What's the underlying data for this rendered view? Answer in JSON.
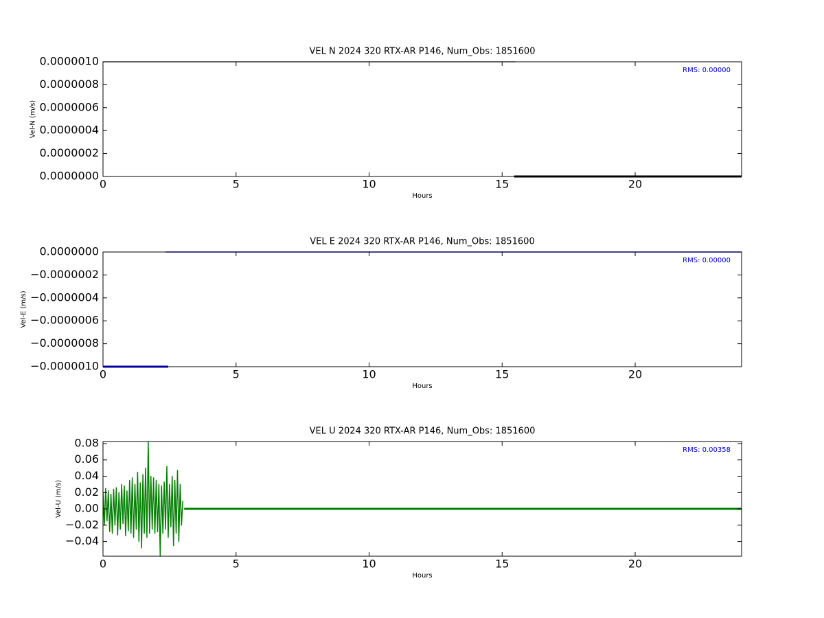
{
  "chart_data": [
    {
      "type": "line",
      "title": "VEL N 2024 320 RTX-AR  P146, Num_Obs: 1851600",
      "xlabel": "Hours",
      "ylabel": "Vel-N (m/s)",
      "annotation": "RMS:  0.00000",
      "xlim": [
        0,
        24
      ],
      "xticks": [
        0,
        5,
        10,
        15,
        20
      ],
      "ylim": [
        0,
        1e-06
      ],
      "yticks": [
        {
          "value": 0,
          "label": "0.0000000"
        },
        {
          "value": 2e-07,
          "label": "0.0000002"
        },
        {
          "value": 4e-07,
          "label": "0.0000004"
        },
        {
          "value": 6e-07,
          "label": "0.0000006"
        },
        {
          "value": 8e-07,
          "label": "0.0000008"
        },
        {
          "value": 1e-06,
          "label": "0.0000010"
        }
      ],
      "series": [
        {
          "color": "#000000",
          "linewidth": 1.2,
          "x": [
            0,
            15.5
          ],
          "values": [
            1e-06,
            1e-06
          ]
        },
        {
          "color": "#000000",
          "linewidth": 3,
          "x": [
            15.45,
            24
          ],
          "values": [
            0,
            0
          ]
        }
      ]
    },
    {
      "type": "line",
      "title": "VEL E 2024 320 RTX-AR  P146, Num_Obs: 1851600",
      "xlabel": "Hours",
      "ylabel": "Vel-E (m/s)",
      "annotation": "RMS:  0.00000",
      "xlim": [
        0,
        24
      ],
      "xticks": [
        0,
        5,
        10,
        15,
        20
      ],
      "ylim": [
        -1e-06,
        0
      ],
      "yticks": [
        {
          "value": -1e-06,
          "label": "−0.0000010"
        },
        {
          "value": -8e-07,
          "label": "−0.0000008"
        },
        {
          "value": -6e-07,
          "label": "−0.0000006"
        },
        {
          "value": -4e-07,
          "label": "−0.0000004"
        },
        {
          "value": -2e-07,
          "label": "−0.0000002"
        },
        {
          "value": 0,
          "label": "0.0000000"
        }
      ],
      "series": [
        {
          "color": "#000000",
          "linewidth": 1,
          "x": [
            0,
            2.35
          ],
          "values": [
            0,
            0
          ]
        },
        {
          "color": "#0000ff",
          "linewidth": 1.5,
          "x": [
            2.35,
            24
          ],
          "values": [
            0,
            0
          ]
        },
        {
          "color": "#0000ff",
          "linewidth": 3,
          "x": [
            0,
            2.45
          ],
          "values": [
            -1e-06,
            -1e-06
          ]
        }
      ]
    },
    {
      "type": "line",
      "title": "VEL U 2024 320 RTX-AR  P146, Num_Obs: 1851600",
      "xlabel": "Hours",
      "ylabel": "Vel-U (m/s)",
      "annotation": "RMS:  0.00358",
      "xlim": [
        0,
        24
      ],
      "xticks": [
        0,
        5,
        10,
        15,
        20
      ],
      "ylim": [
        -0.058,
        0.0825
      ],
      "yticks": [
        {
          "value": -0.04,
          "label": "−0.04"
        },
        {
          "value": -0.02,
          "label": "−0.02"
        },
        {
          "value": 0,
          "label": "0.00"
        },
        0.02,
        0.04,
        0.06,
        0.08
      ],
      "series": [
        {
          "color": "#008000",
          "linewidth": 1.5,
          "x": [
            0,
            0.05,
            0.1,
            0.15,
            0.2,
            0.25,
            0.3,
            0.35,
            0.4,
            0.45,
            0.5,
            0.55,
            0.6,
            0.65,
            0.7,
            0.75,
            0.8,
            0.85,
            0.9,
            0.95,
            1,
            1.05,
            1.1,
            1.15,
            1.2,
            1.25,
            1.3,
            1.35,
            1.4,
            1.45,
            1.5,
            1.55,
            1.6,
            1.65,
            1.7,
            1.75,
            1.8,
            1.85,
            1.9,
            1.95,
            2,
            2.05,
            2.1,
            2.15,
            2.2,
            2.25,
            2.3,
            2.35,
            2.4,
            2.45,
            2.5,
            2.55,
            2.6,
            2.65,
            2.7,
            2.75,
            2.8,
            2.85,
            2.9,
            2.95,
            3
          ],
          "values": [
            0.02,
            -0.02,
            0.025,
            -0.015,
            0.022,
            -0.028,
            0.018,
            -0.03,
            0.024,
            -0.02,
            0.026,
            -0.032,
            0.02,
            -0.025,
            0.03,
            -0.018,
            0.028,
            -0.033,
            0.022,
            -0.027,
            0.035,
            -0.03,
            0.038,
            -0.035,
            0.03,
            -0.025,
            0.045,
            -0.04,
            0.032,
            -0.048,
            0.042,
            -0.03,
            0.05,
            -0.035,
            0.082,
            -0.03,
            0.04,
            -0.025,
            0.038,
            -0.03,
            0.035,
            -0.028,
            0.03,
            -0.058,
            0.028,
            -0.03,
            0.033,
            -0.025,
            0.052,
            -0.035,
            0.03,
            -0.022,
            0.04,
            -0.045,
            0.035,
            -0.03,
            0.047,
            -0.04,
            0.03,
            -0.02,
            0.01
          ]
        },
        {
          "color": "#008000",
          "linewidth": 3,
          "x": [
            3.05,
            24
          ],
          "values": [
            0,
            0
          ]
        }
      ]
    }
  ]
}
